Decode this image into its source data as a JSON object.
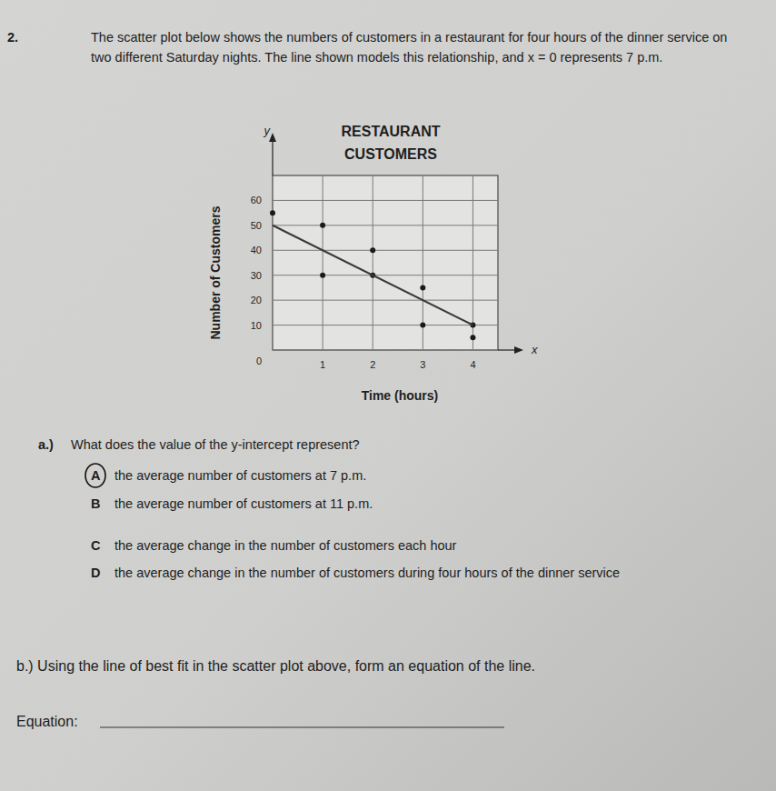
{
  "document": {
    "number": "2.",
    "intro": "The scatter plot below shows the numbers of customers in a restaurant for four hours of the dinner service on two different Saturday nights. The line shown models this relationship, and x = 0 represents 7 p.m.",
    "part_a": {
      "label": "a.)",
      "question": "What does the value of the y-intercept represent?",
      "options": [
        {
          "letter": "A",
          "text": "the average number of customers at 7 p.m.",
          "circled": true
        },
        {
          "letter": "B",
          "text": "the average number of customers at 11 p.m.",
          "circled": false
        },
        {
          "letter": "C",
          "text": "the average change in the number of customers each hour",
          "circled": false
        },
        {
          "letter": "D",
          "text": "the average change in the number of customers during four hours of the dinner service",
          "circled": false
        }
      ]
    },
    "part_b": {
      "label": "b.)",
      "question": "Using the line of best fit in the scatter plot above, form an equation of the line.",
      "answer_label": "Equation:"
    }
  },
  "chart_data": {
    "type": "scatter",
    "title": [
      "RESTAURANT",
      "CUSTOMERS"
    ],
    "x_label": "Time (hours)",
    "y_label": "Number of Customers",
    "x_symbol": "x",
    "y_symbol": "y",
    "xlim": [
      0,
      4.5
    ],
    "ylim": [
      0,
      70
    ],
    "xticks": [
      1,
      2,
      3,
      4
    ],
    "yticks": [
      0,
      10,
      20,
      30,
      40,
      50,
      60
    ],
    "grid": true,
    "series": [
      {
        "type": "scatter",
        "marker": "circle",
        "color": "#1a1a1a",
        "x": [
          0,
          1,
          1,
          2,
          2,
          3,
          3,
          4,
          4
        ],
        "values": [
          55,
          50,
          30,
          40,
          30,
          25,
          10,
          10,
          5
        ]
      },
      {
        "type": "line",
        "line_style": "solid",
        "color": "#3a3a3a",
        "x": [
          0,
          4
        ],
        "values": [
          50,
          10
        ]
      }
    ]
  }
}
